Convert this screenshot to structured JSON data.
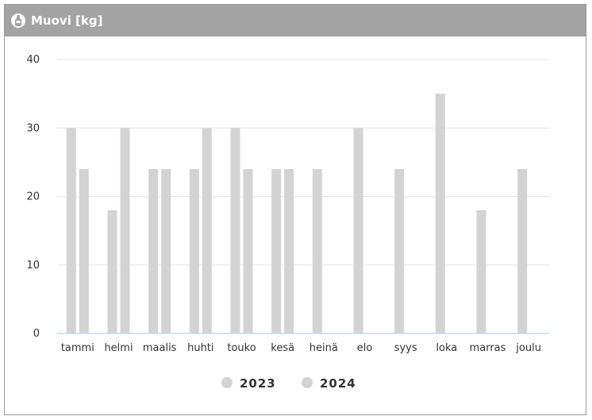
{
  "header": {
    "title": "Muovi [kg]",
    "icon": "bottle-icon"
  },
  "chart_data": {
    "type": "bar",
    "categories": [
      "tammi",
      "helmi",
      "maalis",
      "huhti",
      "touko",
      "kesä",
      "heinä",
      "elo",
      "syys",
      "loka",
      "marras",
      "joulu"
    ],
    "series": [
      {
        "name": "2023",
        "values": [
          30,
          18,
          24,
          24,
          30,
          24,
          24,
          30,
          24,
          35,
          18,
          24
        ],
        "color": "#d3d3d3"
      },
      {
        "name": "2024",
        "values": [
          24,
          30,
          24,
          30,
          24,
          24,
          0,
          0,
          0,
          0,
          0,
          0
        ],
        "color": "#d3d3d3"
      }
    ],
    "yticks": [
      "0",
      "10",
      "20",
      "30",
      "40"
    ],
    "ylim": [
      0,
      40
    ],
    "grid": true,
    "legend": "bottom-center"
  },
  "colors": {
    "header_bg": "#a3a3a3",
    "bar": "#d3d3d3",
    "grid": "#e6e6e6",
    "baseline": "#c9dbe6"
  }
}
